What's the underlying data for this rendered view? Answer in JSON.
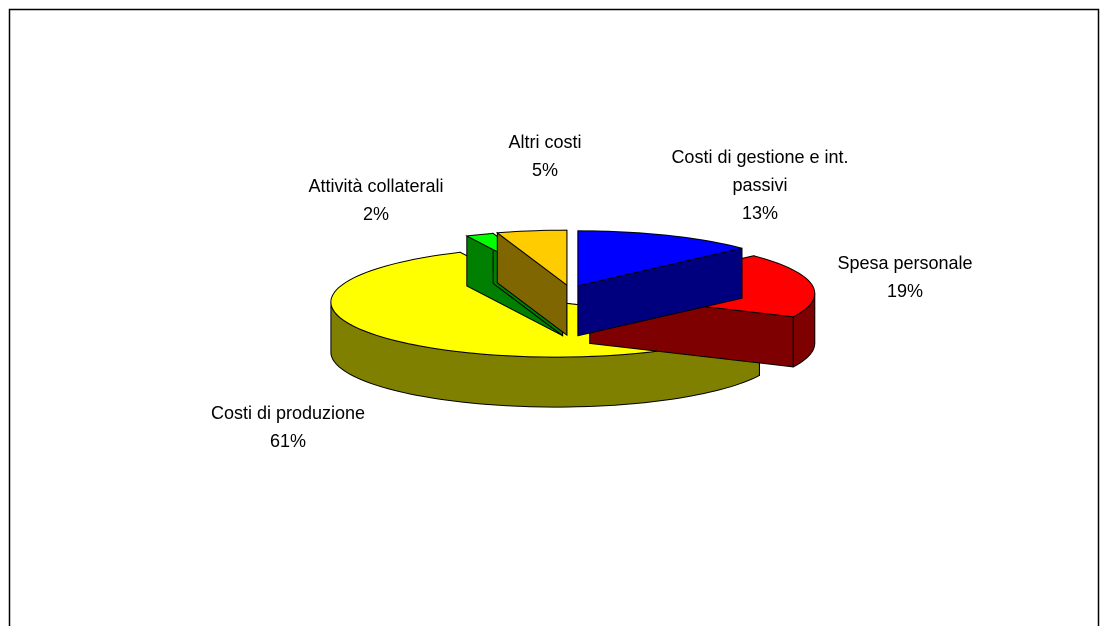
{
  "chart_data": {
    "type": "pie3d",
    "categories": [
      "Costi di gestione e int. passivi",
      "Spesa personale",
      "Costi di produzione",
      "Attività collaterali",
      "Altri costi"
    ],
    "values": [
      13,
      19,
      61,
      2,
      5
    ],
    "value_labels": [
      "13%",
      "19%",
      "61%",
      "2%",
      "5%"
    ],
    "colors": [
      "#0000ff",
      "#ff0000",
      "#ffff00",
      "#00ff00",
      "#ffcc00"
    ]
  }
}
